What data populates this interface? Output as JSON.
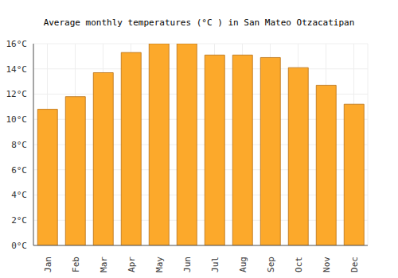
{
  "chart_data": {
    "type": "bar",
    "title": "Average monthly temperatures (°C ) in San Mateo Otzacatipan",
    "categories": [
      "Jan",
      "Feb",
      "Mar",
      "Apr",
      "May",
      "Jun",
      "Jul",
      "Aug",
      "Sep",
      "Oct",
      "Nov",
      "Dec"
    ],
    "values": [
      10.8,
      11.8,
      13.7,
      15.3,
      16.0,
      16.0,
      15.1,
      15.1,
      14.9,
      14.1,
      12.7,
      11.2
    ],
    "color": "#fca92b",
    "ylim": [
      0,
      16
    ],
    "yticks": [
      {
        "value": 0,
        "label": "0°C"
      },
      {
        "value": 2,
        "label": "2°C"
      },
      {
        "value": 4,
        "label": "4°C"
      },
      {
        "value": 6,
        "label": "6°C"
      },
      {
        "value": 8,
        "label": "8°C"
      },
      {
        "value": 10,
        "label": "10°C"
      },
      {
        "value": 12,
        "label": "12°C"
      },
      {
        "value": 14,
        "label": "14°C"
      },
      {
        "value": 16,
        "label": "16°C"
      }
    ],
    "grid": true
  }
}
